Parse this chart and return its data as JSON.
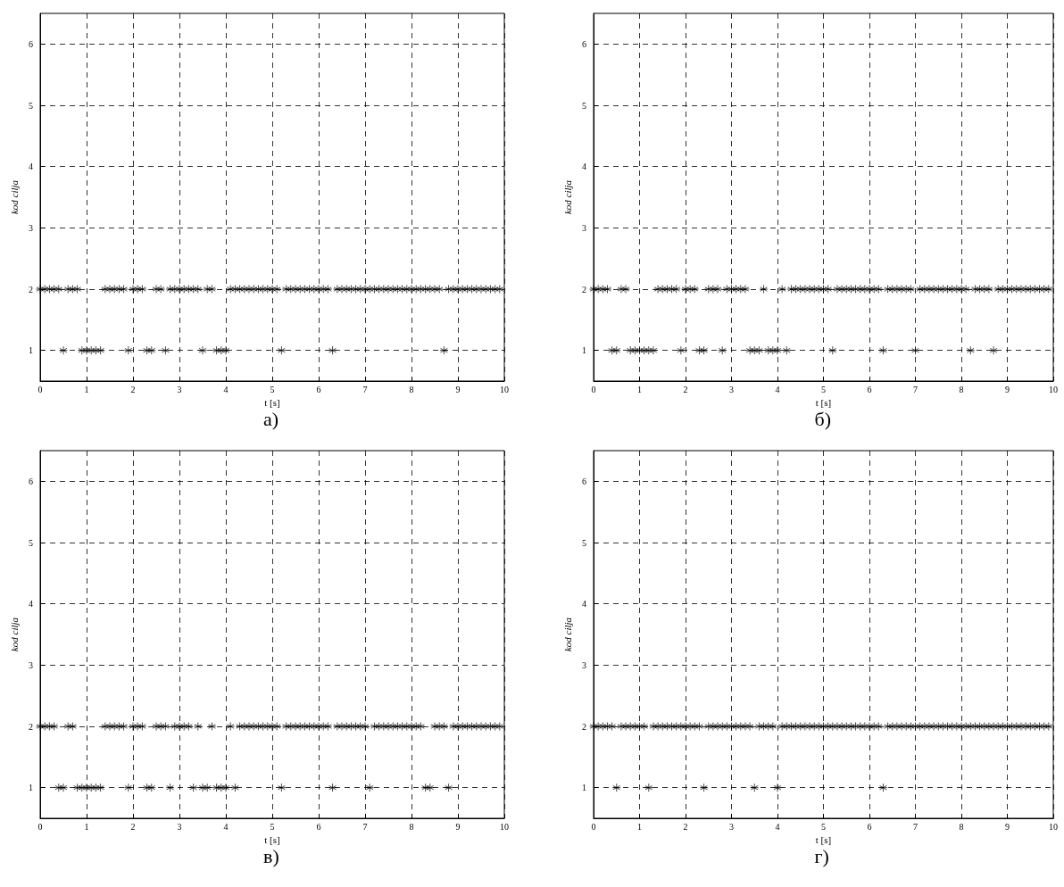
{
  "chart_data": [
    {
      "type": "scatter",
      "xlabel": "t [s]",
      "ylabel": "kod cilja",
      "annotations": [
        "а)"
      ],
      "xlim": [
        0,
        10
      ],
      "xticks": [
        0,
        1,
        2,
        3,
        4,
        5,
        6,
        7,
        8,
        9,
        10
      ],
      "ylim": [
        0.5,
        6.5
      ],
      "yticks": [
        1,
        2,
        3,
        4,
        5,
        6
      ],
      "grid": true,
      "marker": "cross",
      "series": [
        {
          "color": "#000000",
          "x": [
            0,
            0.1,
            0.2,
            0.3,
            0.4,
            0.6,
            0.7,
            0.8,
            1.4,
            1.5,
            1.6,
            1.7,
            1.8,
            2.0,
            2.1,
            2.2,
            2.5,
            2.6,
            2.8,
            2.9,
            3.0,
            3.1,
            3.2,
            3.3,
            3.4,
            3.6,
            3.7,
            4.1,
            4.2,
            4.3,
            4.4,
            4.5,
            4.6,
            4.7,
            4.8,
            4.9,
            5.0,
            5.1,
            5.3,
            5.4,
            5.5,
            5.6,
            5.7,
            5.8,
            5.9,
            6.0,
            6.1,
            6.2,
            6.4,
            6.5,
            6.6,
            6.7,
            6.8,
            6.9,
            7.0,
            7.1,
            7.2,
            7.3,
            7.4,
            7.5,
            7.6,
            7.7,
            7.8,
            7.9,
            8.0,
            8.1,
            8.2,
            8.3,
            8.4,
            8.5,
            8.6,
            8.8,
            8.9,
            9.0,
            9.1,
            9.2,
            9.3,
            9.4,
            9.5,
            9.6,
            9.7,
            9.8,
            9.9
          ],
          "values": [
            2,
            2,
            2,
            2,
            2,
            2,
            2,
            2,
            2,
            2,
            2,
            2,
            2,
            2,
            2,
            2,
            2,
            2,
            2,
            2,
            2,
            2,
            2,
            2,
            2,
            2,
            2,
            2,
            2,
            2,
            2,
            2,
            2,
            2,
            2,
            2,
            2,
            2,
            2,
            2,
            2,
            2,
            2,
            2,
            2,
            2,
            2,
            2,
            2,
            2,
            2,
            2,
            2,
            2,
            2,
            2,
            2,
            2,
            2,
            2,
            2,
            2,
            2,
            2,
            2,
            2,
            2,
            2,
            2,
            2,
            2,
            2,
            2,
            2,
            2,
            2,
            2,
            2,
            2,
            2,
            2,
            2,
            2
          ]
        },
        {
          "color": "#000000",
          "x": [
            0.5,
            0.9,
            1.0,
            1.1,
            1.2,
            1.3,
            1.9,
            2.3,
            2.4,
            2.7,
            3.5,
            3.8,
            3.9,
            4.0,
            5.2,
            6.3,
            8.7
          ],
          "values": [
            1,
            1,
            1,
            1,
            1,
            1,
            1,
            1,
            1,
            1,
            1,
            1,
            1,
            1,
            1,
            1,
            1
          ]
        }
      ]
    },
    {
      "type": "scatter",
      "xlabel": "t [s]",
      "ylabel": "kod cilja",
      "annotations": [
        "б)"
      ],
      "xlim": [
        0,
        10
      ],
      "xticks": [
        0,
        1,
        2,
        3,
        4,
        5,
        6,
        7,
        8,
        9,
        10
      ],
      "ylim": [
        0.5,
        6.5
      ],
      "yticks": [
        1,
        2,
        3,
        4,
        5,
        6
      ],
      "grid": true,
      "marker": "cross",
      "series": [
        {
          "color": "#000000",
          "x": [
            0,
            0.1,
            0.2,
            0.3,
            0.6,
            0.7,
            1.4,
            1.5,
            1.6,
            1.7,
            1.8,
            2.0,
            2.1,
            2.2,
            2.5,
            2.6,
            2.7,
            2.9,
            3.0,
            3.1,
            3.2,
            3.3,
            3.7,
            4.1,
            4.3,
            4.4,
            4.5,
            4.6,
            4.7,
            4.8,
            4.9,
            5.0,
            5.1,
            5.3,
            5.4,
            5.5,
            5.6,
            5.7,
            5.8,
            5.9,
            6.0,
            6.1,
            6.2,
            6.4,
            6.5,
            6.6,
            6.7,
            6.8,
            6.9,
            7.1,
            7.2,
            7.3,
            7.4,
            7.5,
            7.6,
            7.7,
            7.8,
            7.9,
            8.0,
            8.1,
            8.3,
            8.4,
            8.5,
            8.6,
            8.8,
            8.9,
            9.0,
            9.1,
            9.2,
            9.3,
            9.4,
            9.5,
            9.6,
            9.7,
            9.8,
            9.9
          ],
          "values": [
            2,
            2,
            2,
            2,
            2,
            2,
            2,
            2,
            2,
            2,
            2,
            2,
            2,
            2,
            2,
            2,
            2,
            2,
            2,
            2,
            2,
            2,
            2,
            2,
            2,
            2,
            2,
            2,
            2,
            2,
            2,
            2,
            2,
            2,
            2,
            2,
            2,
            2,
            2,
            2,
            2,
            2,
            2,
            2,
            2,
            2,
            2,
            2,
            2,
            2,
            2,
            2,
            2,
            2,
            2,
            2,
            2,
            2,
            2,
            2,
            2,
            2,
            2,
            2,
            2,
            2,
            2,
            2,
            2,
            2,
            2,
            2,
            2,
            2,
            2,
            2
          ]
        },
        {
          "color": "#000000",
          "x": [
            0.4,
            0.5,
            0.8,
            0.9,
            1.0,
            1.1,
            1.2,
            1.3,
            1.9,
            2.3,
            2.4,
            2.8,
            3.4,
            3.5,
            3.6,
            3.8,
            3.9,
            4.0,
            4.2,
            5.2,
            6.3,
            7.0,
            8.2,
            8.7
          ],
          "values": [
            1,
            1,
            1,
            1,
            1,
            1,
            1,
            1,
            1,
            1,
            1,
            1,
            1,
            1,
            1,
            1,
            1,
            1,
            1,
            1,
            1,
            1,
            1,
            1
          ]
        }
      ]
    },
    {
      "type": "scatter",
      "xlabel": "t [s]",
      "ylabel": "kod cilja",
      "annotations": [
        "в)"
      ],
      "xlim": [
        0,
        10
      ],
      "xticks": [
        0,
        1,
        2,
        3,
        4,
        5,
        6,
        7,
        8,
        9,
        10
      ],
      "ylim": [
        0.5,
        6.5
      ],
      "yticks": [
        1,
        2,
        3,
        4,
        5,
        6
      ],
      "grid": true,
      "marker": "cross",
      "series": [
        {
          "color": "#000000",
          "x": [
            0,
            0.1,
            0.2,
            0.3,
            0.6,
            0.7,
            1.4,
            1.5,
            1.6,
            1.7,
            1.8,
            2.0,
            2.1,
            2.2,
            2.5,
            2.6,
            2.7,
            2.9,
            3.0,
            3.1,
            3.2,
            3.4,
            3.7,
            4.1,
            4.3,
            4.4,
            4.5,
            4.6,
            4.7,
            4.8,
            4.9,
            5.0,
            5.1,
            5.3,
            5.4,
            5.5,
            5.6,
            5.7,
            5.8,
            5.9,
            6.0,
            6.1,
            6.2,
            6.4,
            6.5,
            6.6,
            6.7,
            6.8,
            6.9,
            7.0,
            7.2,
            7.3,
            7.4,
            7.5,
            7.6,
            7.7,
            7.8,
            7.9,
            8.0,
            8.1,
            8.2,
            8.5,
            8.6,
            8.7,
            8.9,
            9.0,
            9.1,
            9.2,
            9.3,
            9.4,
            9.5,
            9.6,
            9.7,
            9.8,
            9.9
          ],
          "values": [
            2,
            2,
            2,
            2,
            2,
            2,
            2,
            2,
            2,
            2,
            2,
            2,
            2,
            2,
            2,
            2,
            2,
            2,
            2,
            2,
            2,
            2,
            2,
            2,
            2,
            2,
            2,
            2,
            2,
            2,
            2,
            2,
            2,
            2,
            2,
            2,
            2,
            2,
            2,
            2,
            2,
            2,
            2,
            2,
            2,
            2,
            2,
            2,
            2,
            2,
            2,
            2,
            2,
            2,
            2,
            2,
            2,
            2,
            2,
            2,
            2,
            2,
            2,
            2,
            2,
            2,
            2,
            2,
            2,
            2,
            2,
            2,
            2,
            2,
            2
          ]
        },
        {
          "color": "#000000",
          "x": [
            0.4,
            0.5,
            0.8,
            0.9,
            1.0,
            1.1,
            1.2,
            1.3,
            1.9,
            2.3,
            2.4,
            2.8,
            3.3,
            3.5,
            3.6,
            3.8,
            3.9,
            4.0,
            4.2,
            5.2,
            6.3,
            7.1,
            8.3,
            8.4,
            8.8
          ],
          "values": [
            1,
            1,
            1,
            1,
            1,
            1,
            1,
            1,
            1,
            1,
            1,
            1,
            1,
            1,
            1,
            1,
            1,
            1,
            1,
            1,
            1,
            1,
            1,
            1,
            1
          ]
        }
      ]
    },
    {
      "type": "scatter",
      "xlabel": "t [s]",
      "ylabel": "kod cilja",
      "annotations": [
        "г)"
      ],
      "xlim": [
        0,
        10
      ],
      "xticks": [
        0,
        1,
        2,
        3,
        4,
        5,
        6,
        7,
        8,
        9,
        10
      ],
      "ylim": [
        0.5,
        6.5
      ],
      "yticks": [
        1,
        2,
        3,
        4,
        5,
        6
      ],
      "grid": true,
      "marker": "cross",
      "series": [
        {
          "color": "#000000",
          "x": [
            0,
            0.1,
            0.2,
            0.3,
            0.4,
            0.6,
            0.7,
            0.8,
            0.9,
            1.0,
            1.1,
            1.3,
            1.4,
            1.5,
            1.6,
            1.7,
            1.8,
            1.9,
            2.0,
            2.1,
            2.2,
            2.3,
            2.5,
            2.6,
            2.7,
            2.8,
            2.9,
            3.0,
            3.1,
            3.2,
            3.3,
            3.4,
            3.6,
            3.7,
            3.8,
            3.9,
            4.1,
            4.2,
            4.3,
            4.4,
            4.5,
            4.6,
            4.7,
            4.8,
            4.9,
            5.0,
            5.1,
            5.2,
            5.3,
            5.4,
            5.5,
            5.6,
            5.7,
            5.8,
            5.9,
            6.0,
            6.1,
            6.2,
            6.4,
            6.5,
            6.6,
            6.7,
            6.8,
            6.9,
            7.0,
            7.1,
            7.2,
            7.3,
            7.4,
            7.5,
            7.6,
            7.7,
            7.8,
            7.9,
            8.0,
            8.1,
            8.2,
            8.3,
            8.4,
            8.5,
            8.6,
            8.7,
            8.8,
            8.9,
            9.0,
            9.1,
            9.2,
            9.3,
            9.4,
            9.5,
            9.6,
            9.7,
            9.8,
            9.9
          ],
          "values": [
            2,
            2,
            2,
            2,
            2,
            2,
            2,
            2,
            2,
            2,
            2,
            2,
            2,
            2,
            2,
            2,
            2,
            2,
            2,
            2,
            2,
            2,
            2,
            2,
            2,
            2,
            2,
            2,
            2,
            2,
            2,
            2,
            2,
            2,
            2,
            2,
            2,
            2,
            2,
            2,
            2,
            2,
            2,
            2,
            2,
            2,
            2,
            2,
            2,
            2,
            2,
            2,
            2,
            2,
            2,
            2,
            2,
            2,
            2,
            2,
            2,
            2,
            2,
            2,
            2,
            2,
            2,
            2,
            2,
            2,
            2,
            2,
            2,
            2,
            2,
            2,
            2,
            2,
            2,
            2,
            2,
            2,
            2,
            2,
            2,
            2,
            2,
            2,
            2,
            2,
            2,
            2,
            2,
            2
          ]
        },
        {
          "color": "#000000",
          "x": [
            0.5,
            1.2,
            2.4,
            3.5,
            4.0,
            6.3
          ],
          "values": [
            1,
            1,
            1,
            1,
            1,
            1
          ]
        }
      ]
    }
  ]
}
